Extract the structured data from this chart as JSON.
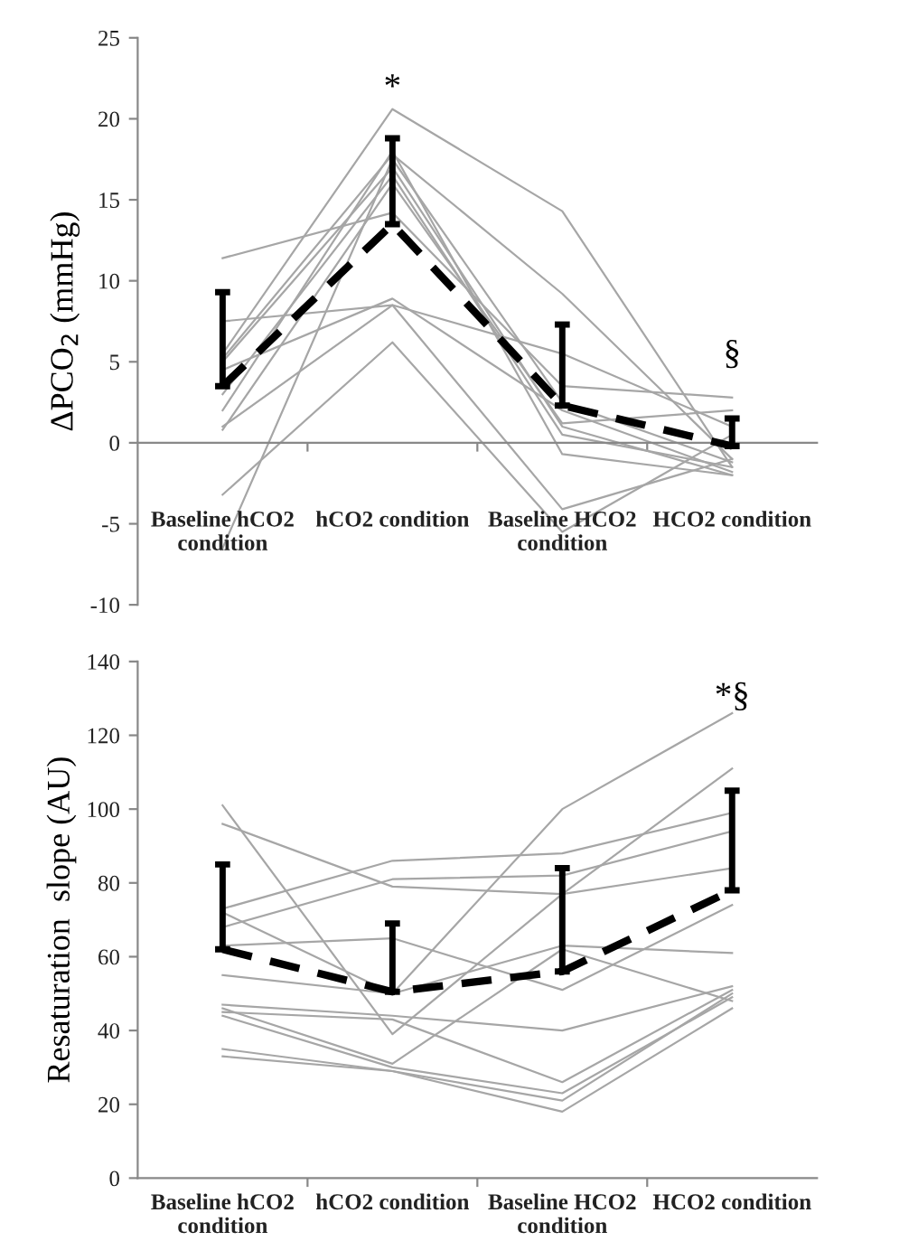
{
  "chart_data": [
    {
      "type": "line",
      "ylabel": "ΔPCO$_{2}$ (mmHg)",
      "categories": [
        "Baseline hCO2\ncondition",
        "hCO2 condition",
        "Baseline HCO2\ncondition",
        "HCO2 condition"
      ],
      "ylim": [
        -10,
        25
      ],
      "yticks": [
        -10,
        -5,
        0,
        5,
        10,
        15,
        20,
        25
      ],
      "grid": false,
      "legend": false,
      "marker": "none",
      "annotations": [
        "*",
        "§"
      ],
      "ref_lines": [
        {
          "axis": "y",
          "value": 0
        }
      ],
      "series": [
        {
          "color": "#a6a6a6",
          "values": [
            11.4,
            14.2,
            3.5,
            2.8
          ]
        },
        {
          "color": "#a6a6a6",
          "values": [
            7.5,
            8.5,
            5.5,
            1.0
          ]
        },
        {
          "color": "#a6a6a6",
          "values": [
            5.5,
            20.6,
            14.3,
            -1.5
          ]
        },
        {
          "color": "#a6a6a6",
          "values": [
            5.2,
            17.8,
            9.2,
            -1.0
          ]
        },
        {
          "color": "#a6a6a6",
          "values": [
            5.0,
            17.0,
            1.0,
            -2.0
          ]
        },
        {
          "color": "#a6a6a6",
          "values": [
            4.5,
            8.9,
            2.0,
            -1.8
          ]
        },
        {
          "color": "#a6a6a6",
          "values": [
            2.0,
            18.0,
            -0.7,
            -2.0
          ]
        },
        {
          "color": "#a6a6a6",
          "values": [
            1.0,
            8.5,
            -4.1,
            -1.0
          ]
        },
        {
          "color": "#a6a6a6",
          "values": [
            0.8,
            16.0,
            1.2,
            2.0
          ]
        },
        {
          "color": "#a6a6a6",
          "values": [
            -3.2,
            6.2,
            -5.5,
            0.5
          ]
        },
        {
          "color": "#a6a6a6",
          "values": [
            -6.5,
            17.5,
            2.5,
            -1.2
          ]
        },
        {
          "color": "#a6a6a6",
          "values": [
            3.0,
            16.5,
            0.5,
            -1.5
          ]
        },
        {
          "color": "#000000",
          "line_style": "dashed",
          "values": [
            3.5,
            13.5,
            2.3,
            -0.2
          ],
          "errors": [
            [
              3.5,
              9.3
            ],
            [
              13.5,
              18.8
            ],
            [
              2.3,
              7.3
            ],
            [
              -0.2,
              1.5
            ]
          ]
        }
      ]
    },
    {
      "type": "line",
      "ylabel": "Resaturation  slope (AU)",
      "categories": [
        "Baseline hCO2\ncondition",
        "hCO2 condition",
        "Baseline HCO2\ncondition",
        "HCO2 condition"
      ],
      "ylim": [
        0,
        140
      ],
      "yticks": [
        0,
        20,
        40,
        60,
        80,
        100,
        120,
        140
      ],
      "grid": false,
      "legend": false,
      "marker": "none",
      "annotations": [
        "*§"
      ],
      "series": [
        {
          "color": "#a6a6a6",
          "values": [
            101,
            39,
            77,
            111
          ]
        },
        {
          "color": "#a6a6a6",
          "values": [
            96,
            79,
            77,
            84
          ]
        },
        {
          "color": "#a6a6a6",
          "values": [
            73,
            86,
            88,
            99
          ]
        },
        {
          "color": "#a6a6a6",
          "values": [
            68,
            81,
            82,
            94
          ]
        },
        {
          "color": "#a6a6a6",
          "values": [
            72,
            50,
            100,
            126
          ]
        },
        {
          "color": "#a6a6a6",
          "values": [
            63,
            65,
            51,
            74
          ]
        },
        {
          "color": "#a6a6a6",
          "values": [
            55,
            50,
            63,
            61
          ]
        },
        {
          "color": "#a6a6a6",
          "values": [
            47,
            44,
            40,
            52
          ]
        },
        {
          "color": "#a6a6a6",
          "values": [
            45,
            43,
            26,
            51
          ]
        },
        {
          "color": "#a6a6a6",
          "values": [
            46,
            31,
            62,
            48
          ]
        },
        {
          "color": "#a6a6a6",
          "values": [
            35,
            29,
            21,
            50
          ]
        },
        {
          "color": "#a6a6a6",
          "values": [
            33,
            29,
            18,
            46
          ]
        },
        {
          "color": "#a6a6a6",
          "values": [
            44,
            30,
            23,
            49
          ]
        },
        {
          "color": "#000000",
          "line_style": "dashed",
          "values": [
            62,
            50.5,
            56,
            78
          ],
          "errors": [
            [
              62,
              85
            ],
            [
              50.5,
              69
            ],
            [
              56,
              84
            ],
            [
              78,
              105
            ]
          ]
        }
      ]
    }
  ]
}
